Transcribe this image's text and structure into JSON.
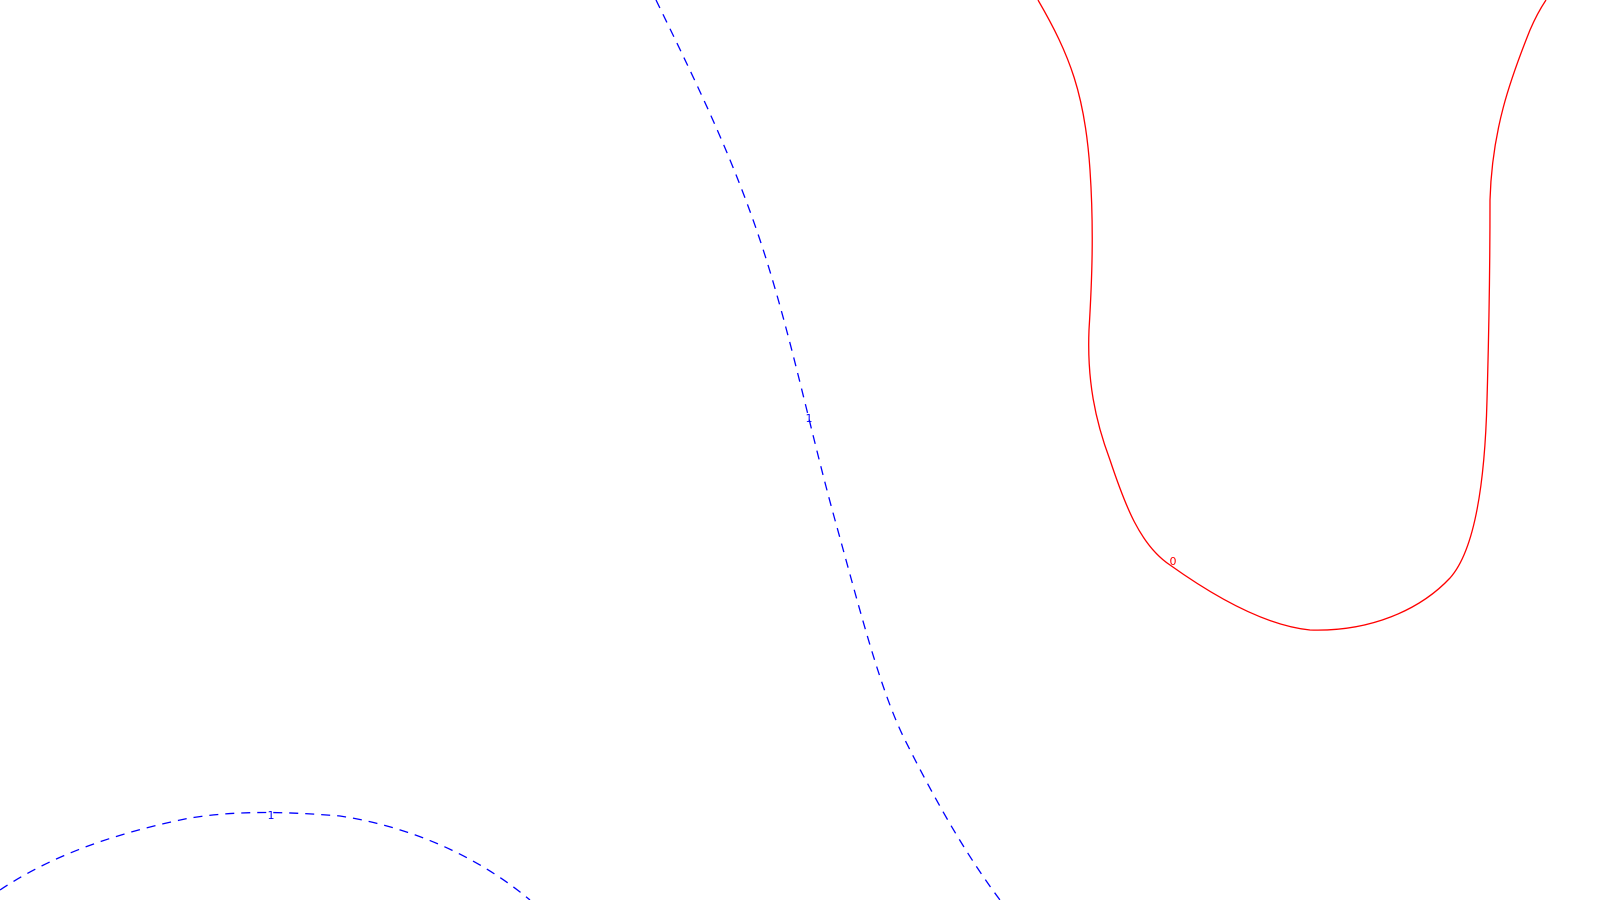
{
  "contours": [
    {
      "id": "contour-1-diagonal",
      "label": "1",
      "color": "#0000ff",
      "style": "dashed"
    },
    {
      "id": "contour-1-bottom",
      "label": "1",
      "color": "#0000ff",
      "style": "dashed"
    },
    {
      "id": "contour-0",
      "label": "0",
      "color": "#ff0000",
      "style": "solid"
    }
  ]
}
